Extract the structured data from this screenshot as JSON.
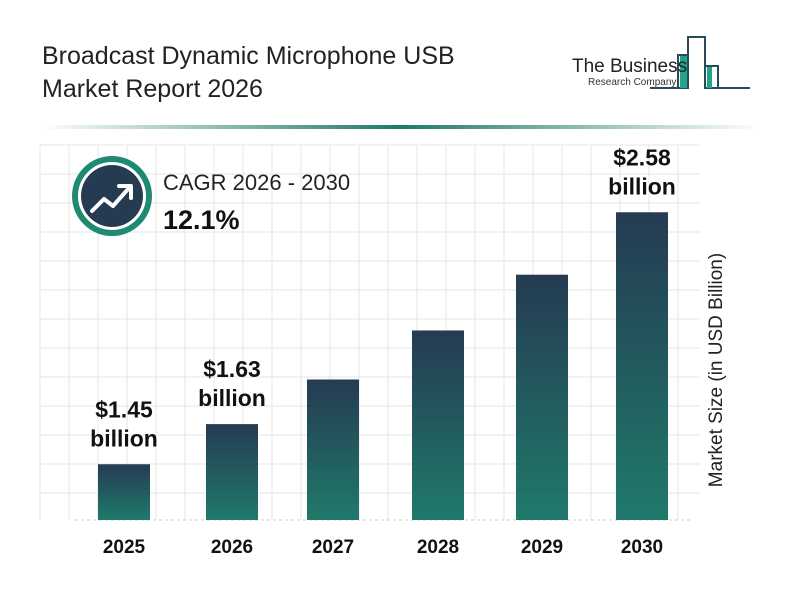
{
  "title": "Broadcast Dynamic Microphone USB Market Report 2026",
  "logo": {
    "line1": "The Business",
    "line2": "Research Company"
  },
  "cagr": {
    "label": "CAGR 2026 - 2030",
    "value": "12.1%",
    "icon": "trend-up-arrow-icon"
  },
  "colors": {
    "bar_top": "#253b52",
    "bar_bottom": "#1f7a6a",
    "accent": "#1f8a72",
    "icon_bg": "#253b52"
  },
  "chart_data": {
    "type": "bar",
    "categories": [
      "2025",
      "2026",
      "2027",
      "2028",
      "2029",
      "2030"
    ],
    "values": [
      1.45,
      1.63,
      1.83,
      2.05,
      2.3,
      2.58
    ],
    "data_labels": [
      {
        "index": 0,
        "value": "$1.45",
        "unit": "billion"
      },
      {
        "index": 1,
        "value": "$1.63",
        "unit": "billion"
      },
      {
        "index": 5,
        "value": "$2.58",
        "unit": "billion"
      }
    ],
    "ylabel": "Market Size (in USD Billion)",
    "xlabel": "",
    "grid": true
  }
}
